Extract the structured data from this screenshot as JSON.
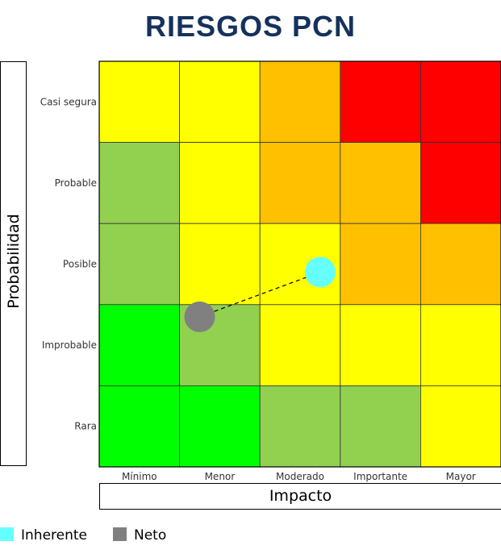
{
  "title": "RIESGOS PCN",
  "chart_data": {
    "type": "heatmap",
    "title": "RIESGOS PCN",
    "xlabel": "Impacto",
    "ylabel": "Probabilidad",
    "x_categories": [
      "Mínimo",
      "Menor",
      "Moderado",
      "Importante",
      "Mayor"
    ],
    "y_categories": [
      "Casi segura",
      "Probable",
      "Posible",
      "Improbable",
      "Rara"
    ],
    "colors": {
      "red": "#ff0000",
      "orange": "#ffc000",
      "yellow": "#ffff00",
      "light_green": "#92d050",
      "green": "#00ff00"
    },
    "cells": [
      [
        "yellow",
        "yellow",
        "orange",
        "red",
        "red"
      ],
      [
        "light_green",
        "yellow",
        "orange",
        "orange",
        "red"
      ],
      [
        "light_green",
        "yellow",
        "yellow",
        "orange",
        "orange"
      ],
      [
        "green",
        "light_green",
        "yellow",
        "yellow",
        "yellow"
      ],
      [
        "green",
        "green",
        "light_green",
        "light_green",
        "yellow"
      ]
    ],
    "points": [
      {
        "name": "Inherente",
        "x": 3.75,
        "y": 3.4,
        "color": "#66ffff"
      },
      {
        "name": "Neto",
        "x": 2.25,
        "y": 2.85,
        "color": "#808080"
      }
    ],
    "connector": {
      "from": "Inherente",
      "to": "Neto",
      "style": "dashed"
    },
    "xlim": [
      1,
      6
    ],
    "ylim": [
      1,
      6
    ],
    "legend": [
      {
        "label": "Inherente",
        "color": "#66ffff"
      },
      {
        "label": "Neto",
        "color": "#808080"
      }
    ],
    "legend_position": "bottom-left"
  }
}
